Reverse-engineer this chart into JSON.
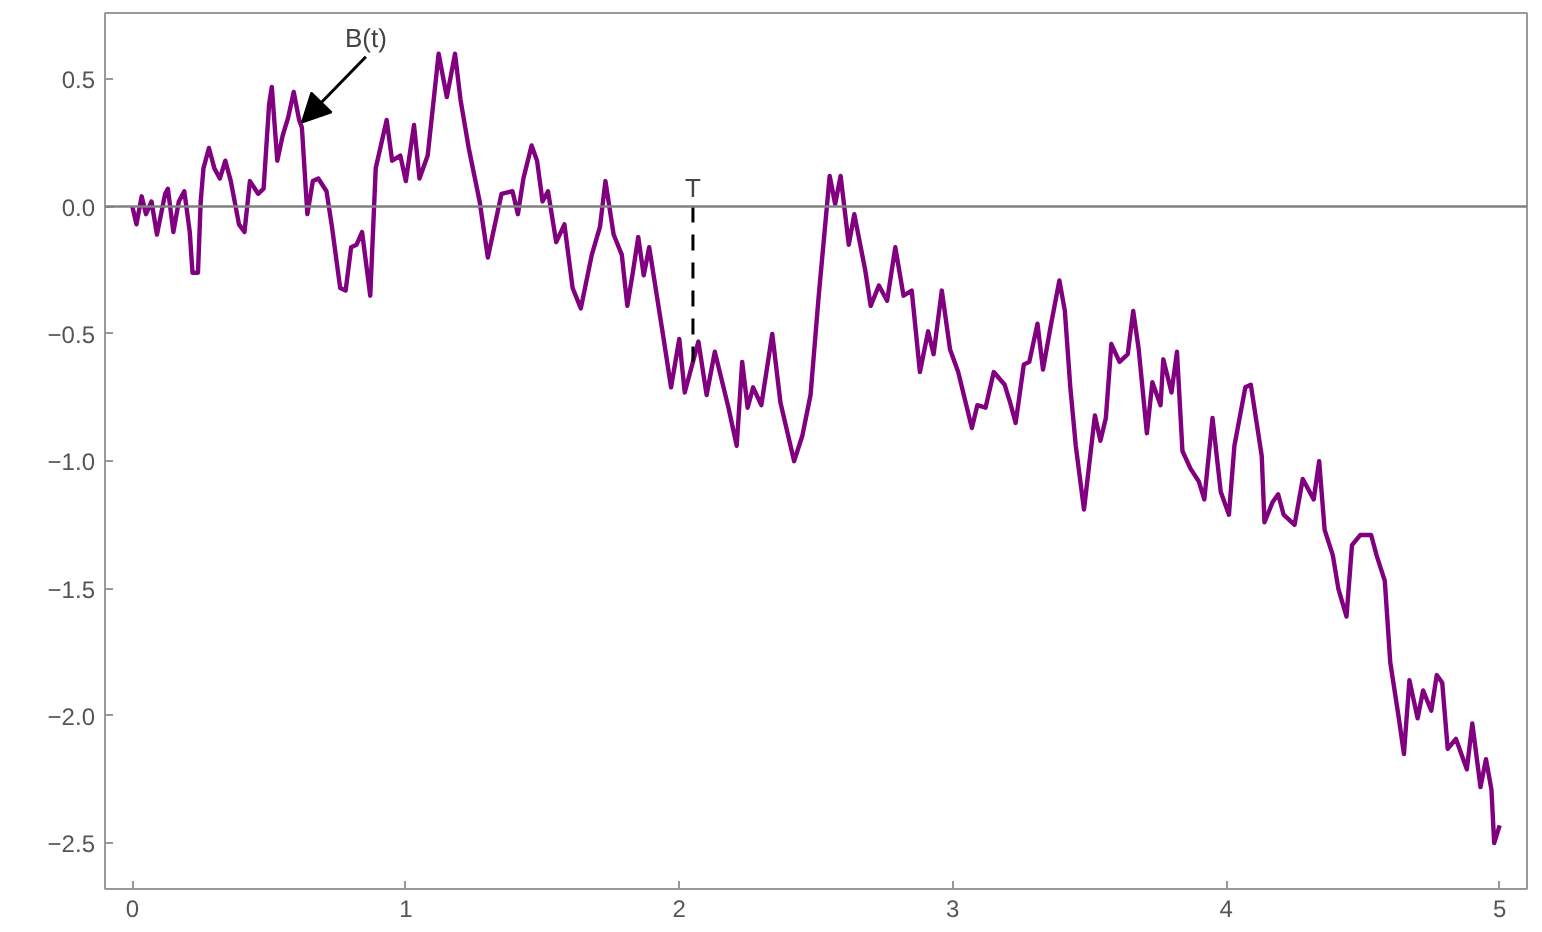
{
  "chart_data": {
    "type": "line",
    "x": [
      0,
      0.015,
      0.034,
      0.05,
      0.07,
      0.09,
      0.105,
      0.12,
      0.13,
      0.15,
      0.17,
      0.19,
      0.21,
      0.22,
      0.24,
      0.25,
      0.26,
      0.28,
      0.3,
      0.32,
      0.34,
      0.36,
      0.39,
      0.41,
      0.43,
      0.46,
      0.48,
      0.5,
      0.51,
      0.53,
      0.55,
      0.57,
      0.59,
      0.61,
      0.62,
      0.64,
      0.66,
      0.68,
      0.71,
      0.73,
      0.76,
      0.78,
      0.8,
      0.82,
      0.84,
      0.87,
      0.89,
      0.93,
      0.95,
      0.98,
      1.0,
      1.03,
      1.05,
      1.08,
      1.12,
      1.15,
      1.18,
      1.2,
      1.23,
      1.27,
      1.3,
      1.35,
      1.39,
      1.41,
      1.43,
      1.46,
      1.48,
      1.5,
      1.52,
      1.55,
      1.58,
      1.61,
      1.64,
      1.68,
      1.71,
      1.73,
      1.76,
      1.79,
      1.81,
      1.83,
      1.85,
      1.87,
      1.89,
      1.94,
      1.97,
      2.0,
      2.02,
      2.07,
      2.1,
      2.13,
      2.18,
      2.21,
      2.23,
      2.25,
      2.27,
      2.3,
      2.34,
      2.37,
      2.42,
      2.45,
      2.48,
      2.51,
      2.55,
      2.57,
      2.59,
      2.62,
      2.64,
      2.68,
      2.7,
      2.73,
      2.76,
      2.79,
      2.82,
      2.85,
      2.88,
      2.91,
      2.93,
      2.96,
      2.99,
      3.02,
      3.07,
      3.09,
      3.12,
      3.15,
      3.19,
      3.21,
      3.23,
      3.26,
      3.28,
      3.31,
      3.33,
      3.36,
      3.39,
      3.41,
      3.43,
      3.45,
      3.48,
      3.52,
      3.54,
      3.56,
      3.58,
      3.61,
      3.64,
      3.66,
      3.68,
      3.71,
      3.73,
      3.76,
      3.77,
      3.8,
      3.82,
      3.84,
      3.87,
      3.9,
      3.92,
      3.95,
      3.98,
      4.01,
      4.03,
      4.07,
      4.09,
      4.13,
      4.14,
      4.17,
      4.19,
      4.21,
      4.25,
      4.28,
      4.32,
      4.34,
      4.36,
      4.39,
      4.41,
      4.44,
      4.46,
      4.49,
      4.53,
      4.55,
      4.58,
      4.6,
      4.63,
      4.65,
      4.67,
      4.7,
      4.72,
      4.75,
      4.77,
      4.79,
      4.81,
      4.84,
      4.88,
      4.9,
      4.93,
      4.95,
      4.97,
      4.98,
      5.0
    ],
    "series": [
      {
        "color": "#800080",
        "values": [
          0,
          -0.07,
          0.04,
          -0.03,
          0.02,
          -0.11,
          -0.03,
          0.05,
          0.07,
          -0.1,
          0.02,
          0.06,
          -0.1,
          -0.26,
          -0.26,
          0.02,
          0.15,
          0.23,
          0.15,
          0.11,
          0.18,
          0.1,
          -0.07,
          -0.1,
          0.1,
          0.05,
          0.07,
          0.4,
          0.47,
          0.18,
          0.28,
          0.35,
          0.45,
          0.34,
          0.31,
          -0.03,
          0.1,
          0.11,
          0.06,
          -0.08,
          -0.32,
          -0.33,
          -0.16,
          -0.15,
          -0.1,
          -0.35,
          0.15,
          0.34,
          0.18,
          0.2,
          0.1,
          0.32,
          0.11,
          0.2,
          0.6,
          0.43,
          0.6,
          0.42,
          0.23,
          0.02,
          -0.2,
          0.05,
          0.06,
          -0.03,
          0.11,
          0.24,
          0.18,
          0.02,
          0.06,
          -0.14,
          -0.07,
          -0.32,
          -0.4,
          -0.19,
          -0.08,
          0.1,
          -0.11,
          -0.19,
          -0.39,
          -0.26,
          -0.12,
          -0.27,
          -0.16,
          -0.5,
          -0.71,
          -0.52,
          -0.73,
          -0.53,
          -0.74,
          -0.57,
          -0.79,
          -0.94,
          -0.61,
          -0.79,
          -0.71,
          -0.78,
          -0.5,
          -0.77,
          -1.0,
          -0.9,
          -0.74,
          -0.35,
          0.12,
          0.01,
          0.12,
          -0.15,
          -0.03,
          -0.25,
          -0.39,
          -0.31,
          -0.37,
          -0.16,
          -0.35,
          -0.33,
          -0.65,
          -0.49,
          -0.58,
          -0.33,
          -0.56,
          -0.65,
          -0.87,
          -0.78,
          -0.79,
          -0.65,
          -0.7,
          -0.77,
          -0.85,
          -0.62,
          -0.61,
          -0.46,
          -0.64,
          -0.46,
          -0.29,
          -0.41,
          -0.71,
          -0.94,
          -1.19,
          -0.82,
          -0.92,
          -0.83,
          -0.54,
          -0.61,
          -0.58,
          -0.41,
          -0.56,
          -0.89,
          -0.69,
          -0.78,
          -0.6,
          -0.73,
          -0.57,
          -0.96,
          -1.03,
          -1.08,
          -1.15,
          -0.83,
          -1.12,
          -1.21,
          -0.94,
          -0.71,
          -0.7,
          -0.98,
          -1.24,
          -1.16,
          -1.13,
          -1.21,
          -1.25,
          -1.07,
          -1.15,
          -1.0,
          -1.27,
          -1.37,
          -1.5,
          -1.61,
          -1.33,
          -1.29,
          -1.29,
          -1.37,
          -1.47,
          -1.79,
          -2.0,
          -2.15,
          -1.86,
          -2.01,
          -1.9,
          -1.98,
          -1.84,
          -1.87,
          -2.13,
          -2.09,
          -2.21,
          -2.03,
          -2.28,
          -2.17,
          -2.29,
          -2.5,
          -2.43
        ]
      }
    ],
    "xlim": [
      -0.1,
      5.1
    ],
    "ylim": [
      -2.68,
      0.76
    ],
    "xticks": [
      0,
      1,
      2,
      3,
      4,
      5
    ],
    "yticks": [
      {
        "value": 0.5,
        "label": "0.5"
      },
      {
        "value": 0,
        "label": "0.0"
      },
      {
        "value": -0.5,
        "label": "−0.5"
      },
      {
        "value": -1,
        "label": "−1.0"
      },
      {
        "value": -1.5,
        "label": "−1.5"
      },
      {
        "value": -2,
        "label": "−2.0"
      },
      {
        "value": -2.5,
        "label": "−2.5"
      }
    ],
    "ref_lines": [
      {
        "axis": "y",
        "value": 0,
        "color": "#808080"
      },
      {
        "axis": "x",
        "value": 2.05,
        "label": "T",
        "color": "#000000",
        "line_style": "dashed"
      }
    ],
    "annotations": [
      {
        "text": "B(t)",
        "x": 0.62,
        "y": 0.33
      }
    ],
    "grid": false,
    "marker": "none",
    "line_style": "solid"
  }
}
